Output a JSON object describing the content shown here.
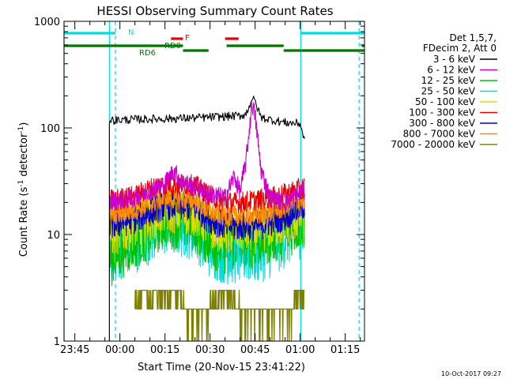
{
  "chart_data": {
    "type": "line",
    "title": "HESSI Observing Summary Count Rates",
    "xlabel": "Start Time (20-Nov-15 23:41:22)",
    "ylabel_main": "Count Rate (s",
    "ylabel_sup1": "-1",
    "ylabel_mid": " detector",
    "ylabel_sup2": "-1",
    "ylabel_end": ")",
    "y_scale": "log",
    "ylim": [
      1,
      1000
    ],
    "xlim_minutes": [
      -18.6,
      81.4
    ],
    "x_reference": "2015-11-21 00:00",
    "x_ticks": [
      {
        "label": "23:45",
        "min": -15
      },
      {
        "label": "00:00",
        "min": 0
      },
      {
        "label": "00:15",
        "min": 15
      },
      {
        "label": "00:30",
        "min": 30
      },
      {
        "label": "00:45",
        "min": 45
      },
      {
        "label": "01:00",
        "min": 60
      },
      {
        "label": "01:15",
        "min": 75
      }
    ],
    "y_ticks": [
      {
        "label": "1",
        "value": 1
      },
      {
        "label": "10",
        "value": 10
      },
      {
        "label": "100",
        "value": 100
      },
      {
        "label": "1000",
        "value": 1000
      }
    ],
    "legend_header": [
      "Det 1,5,7,",
      "FDecim 2, Att 0"
    ],
    "legend_position": "right, outside plot",
    "series": [
      {
        "name": "3 - 6 keV",
        "color": "#000000",
        "start_min": -3.5,
        "end_min": 61.5,
        "points": [
          [
            -3.5,
            118
          ],
          [
            5,
            120
          ],
          [
            15,
            122
          ],
          [
            25,
            124
          ],
          [
            35,
            128
          ],
          [
            40,
            130
          ],
          [
            42,
            135
          ],
          [
            44,
            190
          ],
          [
            45,
            175
          ],
          [
            47,
            125
          ],
          [
            50,
            120
          ],
          [
            55,
            112
          ],
          [
            60,
            110
          ],
          [
            61.5,
            75
          ]
        ]
      },
      {
        "name": "6 - 12 keV",
        "color": "#cc00cc",
        "start_min": -3.5,
        "end_min": 61.5,
        "points": [
          [
            -3.5,
            20
          ],
          [
            5,
            22
          ],
          [
            10,
            26
          ],
          [
            15,
            30
          ],
          [
            18,
            40
          ],
          [
            20,
            32
          ],
          [
            25,
            28
          ],
          [
            30,
            24
          ],
          [
            35,
            22
          ],
          [
            38,
            35
          ],
          [
            40,
            25
          ],
          [
            42,
            50
          ],
          [
            44,
            170
          ],
          [
            45,
            130
          ],
          [
            47,
            40
          ],
          [
            50,
            22
          ],
          [
            55,
            20
          ],
          [
            61.5,
            26
          ]
        ]
      },
      {
        "name": "12 - 25 keV",
        "color": "#00c000",
        "start_min": -3.5,
        "end_min": 61.5,
        "points": [
          [
            -3.5,
            6
          ],
          [
            5,
            9
          ],
          [
            15,
            14
          ],
          [
            25,
            13
          ],
          [
            30,
            9
          ],
          [
            35,
            8
          ],
          [
            40,
            9
          ],
          [
            45,
            9
          ],
          [
            50,
            10
          ],
          [
            55,
            11
          ],
          [
            61.5,
            14
          ]
        ]
      },
      {
        "name": "25 - 50 keV",
        "color": "#00dddd",
        "start_min": -3.5,
        "end_min": 61.5,
        "points": [
          [
            -3.5,
            7
          ],
          [
            5,
            9
          ],
          [
            15,
            13
          ],
          [
            25,
            12
          ],
          [
            30,
            8
          ],
          [
            35,
            7
          ],
          [
            40,
            7
          ],
          [
            45,
            7
          ],
          [
            50,
            8
          ],
          [
            55,
            10
          ],
          [
            61.5,
            13
          ]
        ]
      },
      {
        "name": "50 - 100 keV",
        "color": "#dddd00",
        "start_min": -3.5,
        "end_min": 61.5,
        "points": [
          [
            -3.5,
            10
          ],
          [
            5,
            12
          ],
          [
            15,
            17
          ],
          [
            25,
            16
          ],
          [
            30,
            12
          ],
          [
            35,
            11
          ],
          [
            40,
            11
          ],
          [
            45,
            11
          ],
          [
            50,
            12
          ],
          [
            55,
            13
          ],
          [
            61.5,
            16
          ]
        ]
      },
      {
        "name": "100 - 300 keV",
        "color": "#ee0000",
        "start_min": -3.5,
        "end_min": 61.5,
        "points": [
          [
            -3.5,
            21
          ],
          [
            5,
            23
          ],
          [
            10,
            27
          ],
          [
            15,
            30
          ],
          [
            25,
            29
          ],
          [
            30,
            23
          ],
          [
            35,
            20
          ],
          [
            40,
            20
          ],
          [
            45,
            21
          ],
          [
            50,
            22
          ],
          [
            55,
            24
          ],
          [
            61.5,
            28
          ]
        ]
      },
      {
        "name": "300 - 800 keV",
        "color": "#0000cc",
        "start_min": -3.5,
        "end_min": 61.5,
        "points": [
          [
            -3.5,
            12
          ],
          [
            5,
            14
          ],
          [
            15,
            19
          ],
          [
            25,
            18
          ],
          [
            30,
            14
          ],
          [
            35,
            12
          ],
          [
            40,
            12
          ],
          [
            45,
            12
          ],
          [
            50,
            13
          ],
          [
            55,
            15
          ],
          [
            61.5,
            19
          ]
        ]
      },
      {
        "name": "800 - 7000 keV",
        "color": "#ff8800",
        "start_min": -3.5,
        "end_min": 61.5,
        "points": [
          [
            -3.5,
            15
          ],
          [
            5,
            17
          ],
          [
            15,
            22
          ],
          [
            25,
            21
          ],
          [
            30,
            16
          ],
          [
            35,
            15
          ],
          [
            40,
            15
          ],
          [
            45,
            15
          ],
          [
            50,
            16
          ],
          [
            55,
            18
          ],
          [
            61.5,
            22
          ]
        ]
      },
      {
        "name": "7000 - 20000 keV",
        "color": "#808000",
        "start_min": 5,
        "end_min": 61.5,
        "points": [
          [
            5,
            2
          ],
          [
            10,
            2.6
          ],
          [
            15,
            2.5
          ],
          [
            20,
            2.2
          ],
          [
            25,
            1.8
          ],
          [
            30,
            2.0
          ],
          [
            35,
            2.4
          ],
          [
            40,
            2.0
          ],
          [
            45,
            1.5
          ],
          [
            50,
            1.8
          ],
          [
            55,
            1.6
          ],
          [
            58,
            2.2
          ],
          [
            61.5,
            2.8
          ]
        ]
      }
    ],
    "flag_bars": [
      {
        "label": "N",
        "color": "#00dddd",
        "segments": [
          [
            -18.6,
            -1.5
          ],
          [
            60.2,
            81.4
          ]
        ]
      },
      {
        "label": "F",
        "color": "#ee0000",
        "segments": [
          [
            17,
            21
          ],
          [
            35,
            39.5
          ]
        ]
      },
      {
        "label": "RD0",
        "color": "#007700",
        "segments": [
          [
            -18.6,
            21
          ],
          [
            35.5,
            54.5
          ],
          [
            80.5,
            81.4
          ]
        ]
      },
      {
        "label": "RD6",
        "color": "#007700",
        "segments": [
          [
            21,
            29.5
          ],
          [
            54.5,
            81.4
          ]
        ]
      }
    ],
    "vertical_lines": [
      {
        "min": -18.6,
        "style": "solid",
        "color": "#00dddd"
      },
      {
        "min": -3.5,
        "style": "solid",
        "color": "#00dddd"
      },
      {
        "min": -1.5,
        "style": "dashed",
        "color": "#00dddd"
      },
      {
        "min": 60.2,
        "style": "solid",
        "color": "#00dddd"
      },
      {
        "min": 79.6,
        "style": "dashed",
        "color": "#00dddd"
      }
    ],
    "footer_date": "10-Oct-2017 09:27"
  }
}
